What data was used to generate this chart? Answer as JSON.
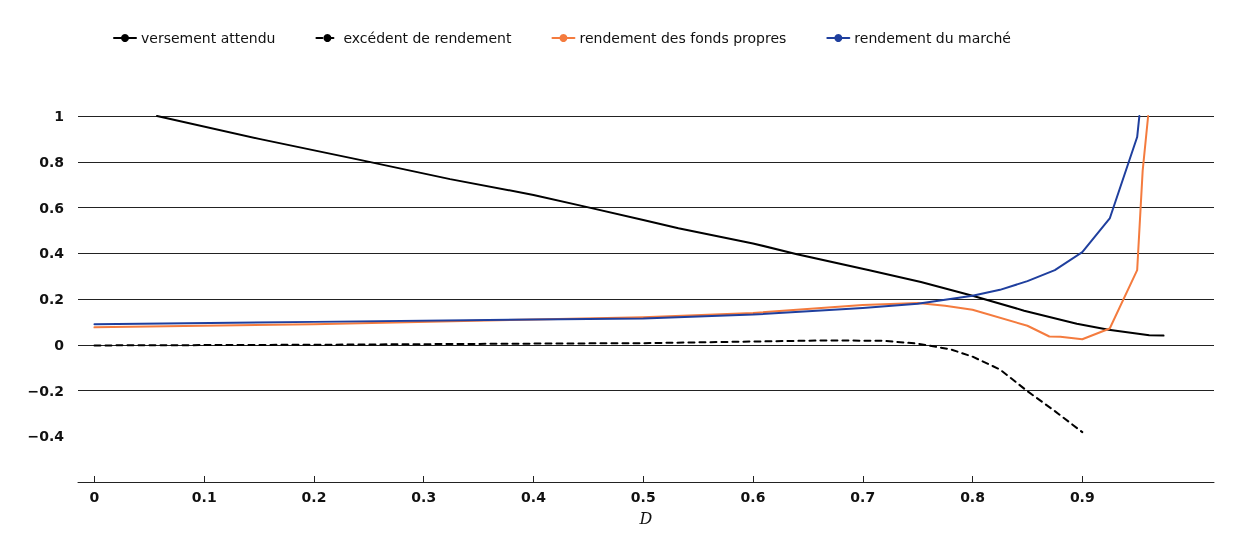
{
  "chart_data": {
    "type": "line",
    "xlabel": "D",
    "xlim": [
      -0.015,
      1.02
    ],
    "xticks": [
      0,
      0.1,
      0.2,
      0.3,
      0.4,
      0.5,
      0.6,
      0.7,
      0.8,
      0.9
    ],
    "ylim": [
      -0.6,
      1
    ],
    "yticks": [
      -0.4,
      -0.2,
      0,
      0.2,
      0.4,
      0.6,
      0.8,
      1
    ],
    "grid": "y",
    "legend": "top",
    "marker": "none",
    "series": [
      {
        "name": "versement attendu",
        "color": "#000000",
        "line_style": "solid",
        "x": [
          0.057,
          0.15,
          0.245,
          0.324,
          0.4,
          0.446,
          0.5,
          0.532,
          0.6,
          0.64,
          0.706,
          0.753,
          0.8,
          0.847,
          0.895,
          0.924,
          0.961,
          0.974
        ],
        "values": [
          1,
          0.9,
          0.805,
          0.724,
          0.655,
          0.605,
          0.545,
          0.509,
          0.443,
          0.396,
          0.326,
          0.274,
          0.214,
          0.149,
          0.092,
          0.066,
          0.042,
          0.04
        ]
      },
      {
        "name": "excédent de rendement",
        "color": "#000000",
        "line_style": "dashed",
        "x": [
          0,
          0.2,
          0.4,
          0.5,
          0.6,
          0.67,
          0.72,
          0.75,
          0.78,
          0.8,
          0.825,
          0.85,
          0.875,
          0.9
        ],
        "values": [
          -0.003,
          0,
          0.005,
          0.007,
          0.014,
          0.019,
          0.017,
          0.005,
          -0.02,
          -0.052,
          -0.108,
          -0.203,
          -0.29,
          -0.382
        ]
      },
      {
        "name": "rendement des fonds propres",
        "color": "#f47b3e",
        "line_style": "solid",
        "x": [
          0,
          0.2,
          0.4,
          0.5,
          0.6,
          0.7,
          0.75,
          0.775,
          0.8,
          0.85,
          0.87,
          0.88,
          0.9,
          0.925,
          0.95,
          0.955,
          0.96
        ],
        "values": [
          0.076,
          0.09,
          0.11,
          0.12,
          0.139,
          0.174,
          0.182,
          0.17,
          0.153,
          0.083,
          0.036,
          0.035,
          0.024,
          0.071,
          0.326,
          0.76,
          1
        ]
      },
      {
        "name": "rendement du marché",
        "color": "#1f3f9e",
        "line_style": "solid",
        "x": [
          0,
          0.2,
          0.4,
          0.5,
          0.6,
          0.7,
          0.75,
          0.8,
          0.825,
          0.85,
          0.875,
          0.9,
          0.925,
          0.95,
          0.952
        ],
        "values": [
          0.09,
          0.1,
          0.11,
          0.115,
          0.132,
          0.161,
          0.179,
          0.214,
          0.24,
          0.278,
          0.326,
          0.405,
          0.552,
          0.908,
          1
        ]
      }
    ]
  }
}
